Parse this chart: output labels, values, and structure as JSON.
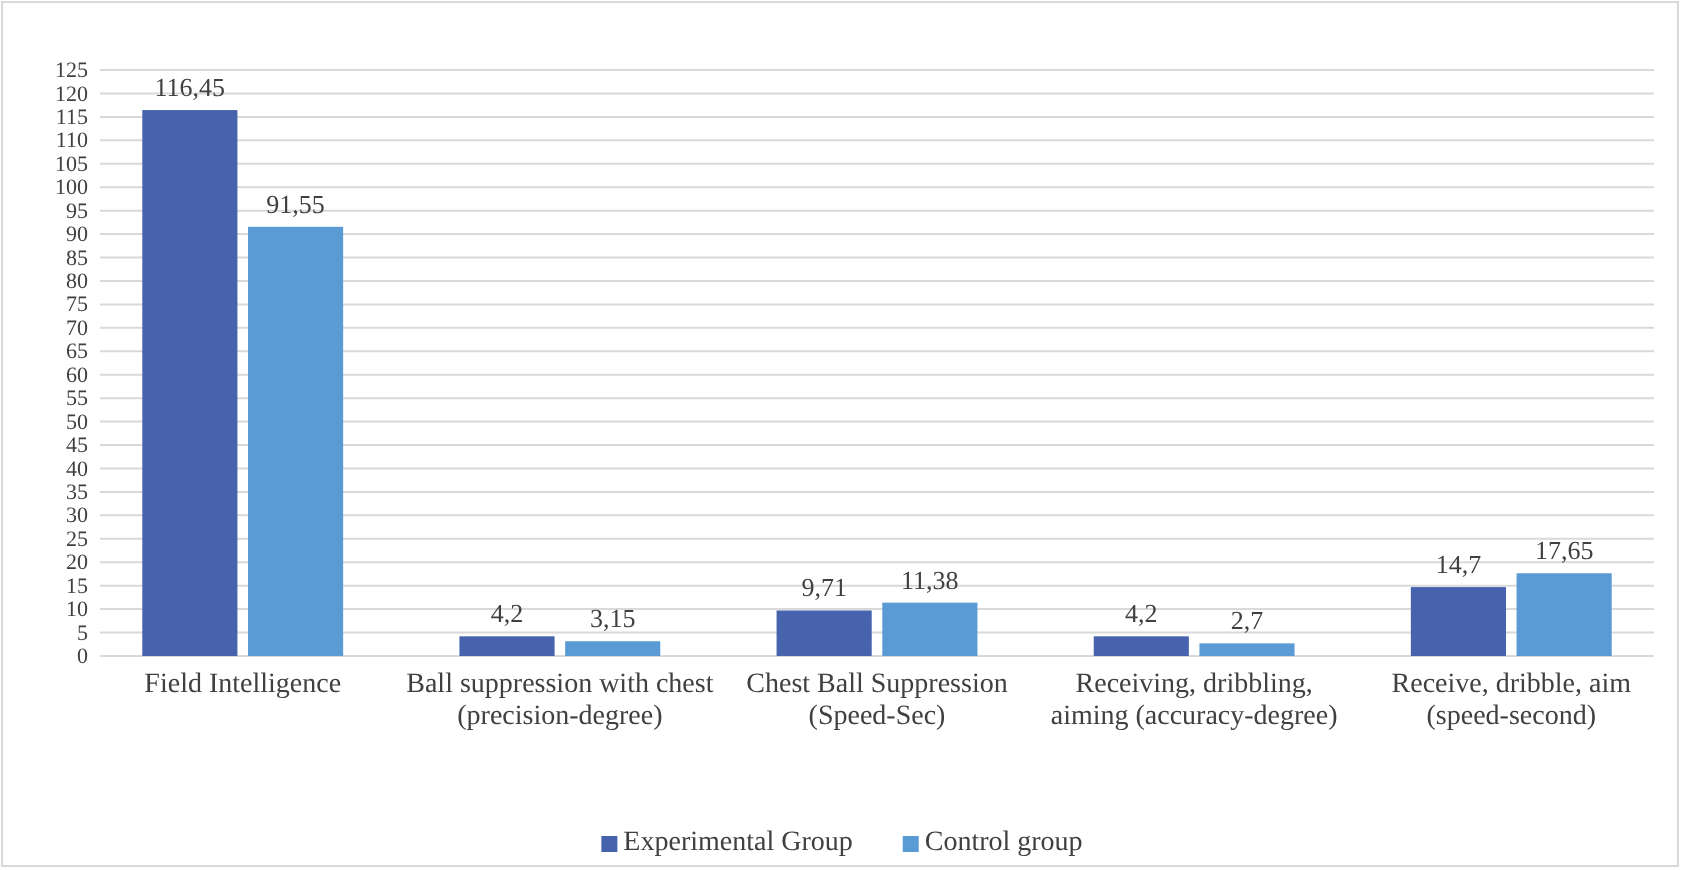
{
  "chart_data": {
    "type": "bar",
    "categories": [
      "Field Intelligence",
      "Ball suppression with chest (precision-degree)",
      "Chest Ball Suppression (Speed-Sec)",
      "Receiving, dribbling, aiming (accuracy-degree)",
      "Receive, dribble, aim (speed-second)"
    ],
    "series": [
      {
        "name": "Experimental Group",
        "color": "#4763ae",
        "values": [
          116.45,
          4.2,
          9.71,
          4.2,
          14.7
        ],
        "value_labels": [
          "116,45",
          "4,2",
          "9,71",
          "4,2",
          "14,7"
        ]
      },
      {
        "name": "Control group",
        "color": "#5b9bd5",
        "values": [
          91.55,
          3.15,
          11.38,
          2.7,
          17.65
        ],
        "value_labels": [
          "91,55",
          "3,15",
          "11,38",
          "2,7",
          "17,65"
        ]
      }
    ],
    "ylim": [
      0,
      125
    ],
    "yticks": [
      0,
      5,
      10,
      15,
      20,
      25,
      30,
      35,
      40,
      45,
      50,
      55,
      60,
      65,
      70,
      75,
      80,
      85,
      90,
      95,
      100,
      105,
      110,
      115,
      120,
      125
    ],
    "grid": "y",
    "legend": "bottom"
  }
}
